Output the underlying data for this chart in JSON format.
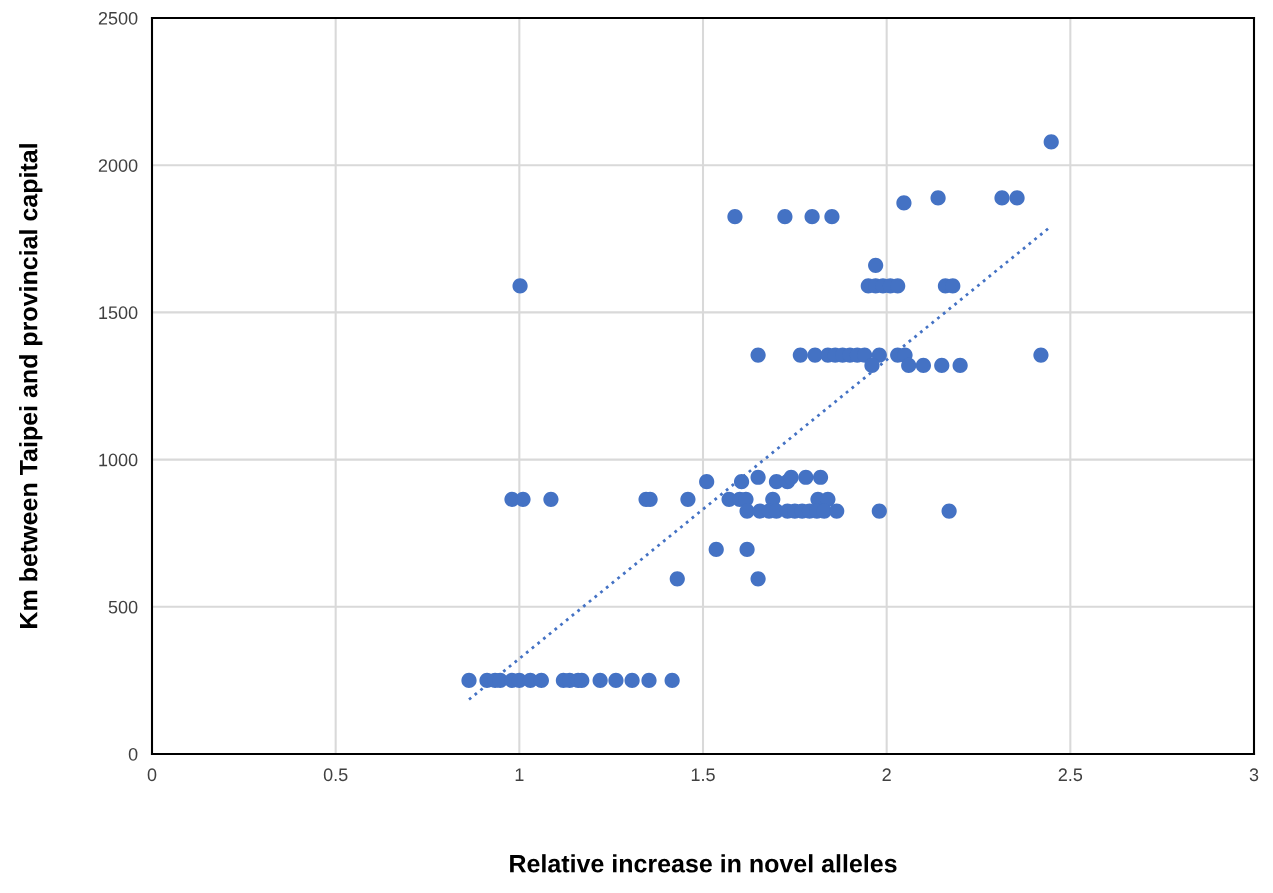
{
  "chart_data": {
    "type": "scatter",
    "xlabel": "Relative increase in novel alleles",
    "ylabel": "Km between Taipei and provincial capital",
    "xlim": [
      0,
      3
    ],
    "xticks": [
      0,
      0.5,
      1,
      1.5,
      2,
      2.5,
      3
    ],
    "ylim": [
      0,
      2500
    ],
    "yticks": [
      0,
      500,
      1000,
      1500,
      2000,
      2500
    ],
    "grid": true,
    "series": [
      {
        "color": "#4472c4",
        "marker": "circle",
        "x": [
          0.863,
          0.912,
          0.934,
          0.948,
          0.98,
          1.0,
          1.03,
          1.06,
          1.12,
          1.137,
          1.16,
          1.17,
          1.22,
          1.263,
          1.307,
          1.353,
          1.416,
          0.98,
          1.01,
          1.086,
          1.345,
          1.356,
          1.459,
          1.571,
          1.6,
          1.617,
          1.69,
          1.813,
          1.84,
          1.51,
          1.605,
          1.7,
          1.73,
          1.65,
          1.74,
          1.78,
          1.82,
          1.62,
          1.655,
          1.68,
          1.7,
          1.73,
          1.75,
          1.77,
          1.79,
          1.81,
          1.83,
          1.864,
          1.98,
          2.17,
          1.536,
          1.62,
          1.43,
          1.65,
          1.65,
          1.765,
          1.805,
          1.84,
          1.86,
          1.88,
          1.9,
          1.92,
          1.94,
          1.98,
          2.03,
          2.05,
          2.42,
          1.96,
          2.06,
          2.1,
          2.15,
          2.2,
          1.95,
          1.97,
          1.99,
          2.01,
          2.03,
          2.16,
          2.18,
          1.97,
          1.002,
          1.587,
          1.723,
          1.797,
          1.851,
          2.047,
          2.14,
          2.314,
          2.355,
          2.448
        ],
        "values": [
          250,
          250,
          250,
          250,
          250,
          250,
          250,
          250,
          250,
          250,
          250,
          250,
          250,
          250,
          250,
          250,
          250,
          865,
          865,
          865,
          865,
          865,
          865,
          865,
          865,
          865,
          865,
          865,
          865,
          925,
          925,
          925,
          925,
          940,
          940,
          940,
          940,
          825,
          825,
          825,
          825,
          825,
          825,
          825,
          825,
          825,
          825,
          825,
          825,
          825,
          695,
          695,
          595,
          595,
          1355,
          1355,
          1355,
          1355,
          1355,
          1355,
          1355,
          1355,
          1355,
          1355,
          1355,
          1355,
          1355,
          1320,
          1320,
          1320,
          1320,
          1320,
          1590,
          1590,
          1590,
          1590,
          1590,
          1590,
          1590,
          1660,
          1590,
          1825,
          1825,
          1825,
          1825,
          1872,
          1889,
          1889,
          1889,
          2079
        ]
      },
      {
        "type": "line",
        "color": "#4472c4",
        "line_style": "dotted",
        "x": [
          0.863,
          2.445
        ],
        "values": [
          185,
          1790
        ]
      }
    ]
  }
}
